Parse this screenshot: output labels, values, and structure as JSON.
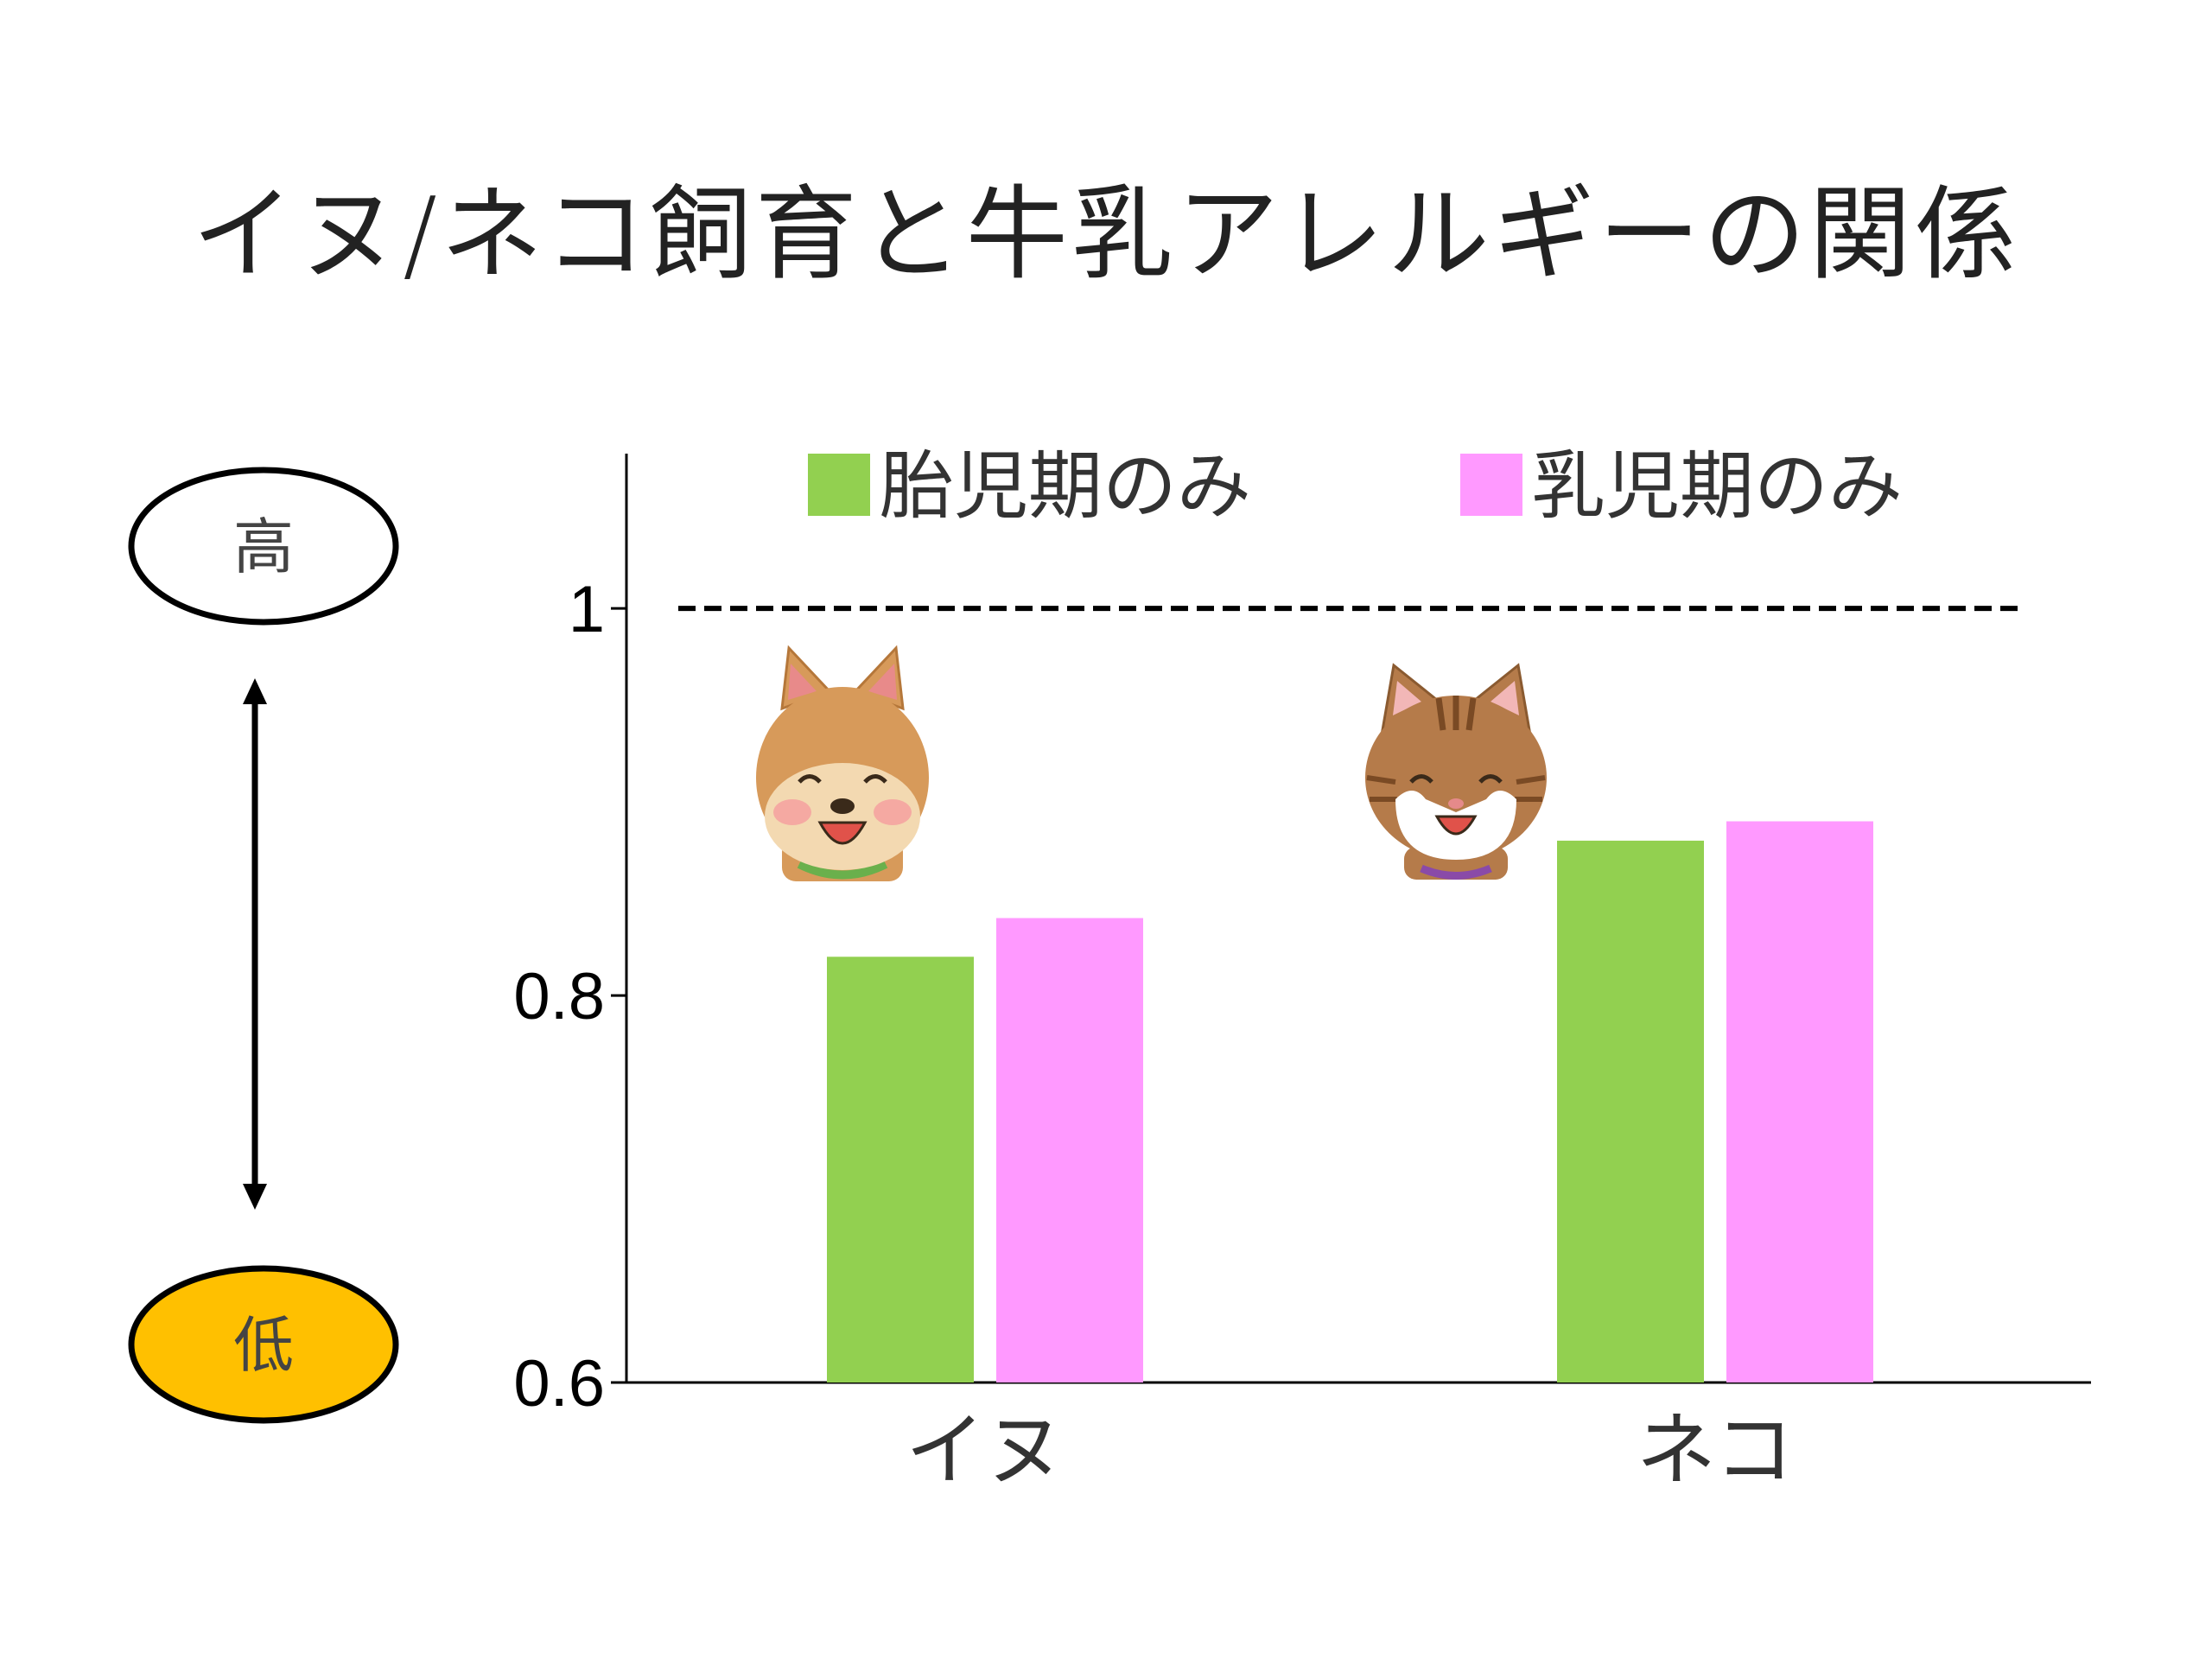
{
  "title": "イヌ/ネコ飼育と牛乳アレルギーの関係",
  "colors": {
    "prenatal": "#92d050",
    "infant": "#ff99ff",
    "high_fill": "#ffffff",
    "low_fill": "#ffc000"
  },
  "scale": {
    "high_label": "高",
    "low_label": "低"
  },
  "chart_data": {
    "type": "bar",
    "categories": [
      "イヌ",
      "ネコ"
    ],
    "series": [
      {
        "name": "胎児期のみ",
        "values": [
          0.82,
          0.88
        ]
      },
      {
        "name": "乳児期のみ",
        "values": [
          0.84,
          0.89
        ]
      }
    ],
    "ylim": [
      0.6,
      1.08
    ],
    "yticks": [
      0.6,
      0.8,
      1.0
    ],
    "ytick_labels": [
      "0.6",
      "0.8",
      "1"
    ],
    "reference_line": 1.0,
    "legend_position": "top",
    "icons": [
      "dog-illustration",
      "cat-illustration"
    ]
  }
}
